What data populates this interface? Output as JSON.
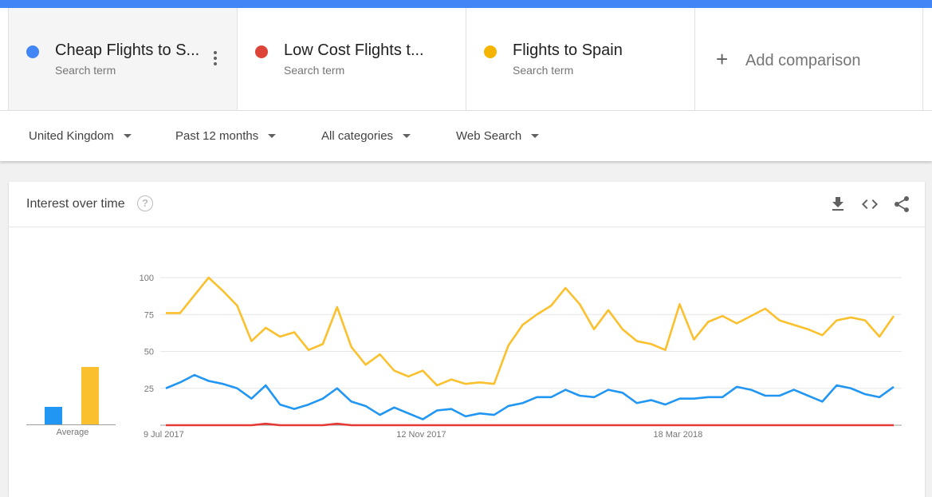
{
  "terms": [
    {
      "name": "Cheap Flights to S...",
      "sub": "Search term",
      "color": "#4285f4"
    },
    {
      "name": "Low Cost Flights t...",
      "sub": "Search term",
      "color": "#db4437"
    },
    {
      "name": "Flights to Spain",
      "sub": "Search term",
      "color": "#f4b400"
    }
  ],
  "add_comparison": {
    "plus": "+",
    "label": "Add comparison"
  },
  "filters": {
    "region": "United Kingdom",
    "time": "Past 12 months",
    "category": "All categories",
    "search_type": "Web Search"
  },
  "card": {
    "title": "Interest over time",
    "help": "?",
    "icons": [
      "download-icon",
      "embed-code-icon",
      "share-icon"
    ]
  },
  "average": {
    "label": "Average",
    "values": [
      {
        "series": "Cheap Flights to S...",
        "value": 19,
        "color": "#2196f3"
      },
      {
        "series": "Low Cost Flights t...",
        "value": 0,
        "color": "#e53935"
      },
      {
        "series": "Flights to Spain",
        "value": 63,
        "color": "#fbc02d"
      }
    ]
  },
  "chart_data": {
    "type": "line",
    "title": "Interest over time",
    "ylim": [
      0,
      100
    ],
    "y_ticks": [
      25,
      50,
      75,
      100
    ],
    "x_tick_labels": [
      {
        "index": 0,
        "label": "9 Jul 2017"
      },
      {
        "index": 18,
        "label": "12 Nov 2017"
      },
      {
        "index": 36,
        "label": "18 Mar 2018"
      }
    ],
    "grid": true,
    "series": [
      {
        "name": "Cheap Flights to S...",
        "color": "#2196f3",
        "values": [
          25,
          29,
          34,
          30,
          28,
          25,
          18,
          27,
          14,
          11,
          14,
          18,
          25,
          16,
          13,
          7,
          12,
          8,
          4,
          10,
          11,
          6,
          8,
          7,
          13,
          15,
          19,
          19,
          24,
          20,
          19,
          24,
          22,
          15,
          17,
          14,
          18,
          18,
          19,
          19,
          26,
          24,
          20,
          20,
          24,
          20,
          16,
          27,
          25,
          21,
          19,
          26
        ]
      },
      {
        "name": "Low Cost Flights t...",
        "color": "#e53935",
        "values": [
          0,
          0,
          0,
          0,
          0,
          0,
          0,
          1,
          0,
          0,
          0,
          0,
          1,
          0,
          0,
          0,
          0,
          0,
          0,
          0,
          0,
          0,
          0,
          0,
          0,
          0,
          0,
          0,
          0,
          0,
          0,
          0,
          0,
          0,
          0,
          0,
          0,
          0,
          0,
          0,
          0,
          0,
          0,
          0,
          0,
          0,
          0,
          0,
          0,
          0,
          0,
          0
        ]
      },
      {
        "name": "Flights to Spain",
        "color": "#fbc02d",
        "values": [
          76,
          76,
          88,
          100,
          91,
          81,
          57,
          66,
          60,
          63,
          51,
          55,
          80,
          53,
          41,
          48,
          37,
          33,
          37,
          27,
          31,
          28,
          29,
          28,
          54,
          68,
          75,
          81,
          93,
          82,
          65,
          78,
          65,
          57,
          55,
          51,
          82,
          58,
          70,
          74,
          69,
          74,
          79,
          71,
          68,
          65,
          61,
          71,
          73,
          71,
          60,
          74
        ]
      }
    ]
  }
}
